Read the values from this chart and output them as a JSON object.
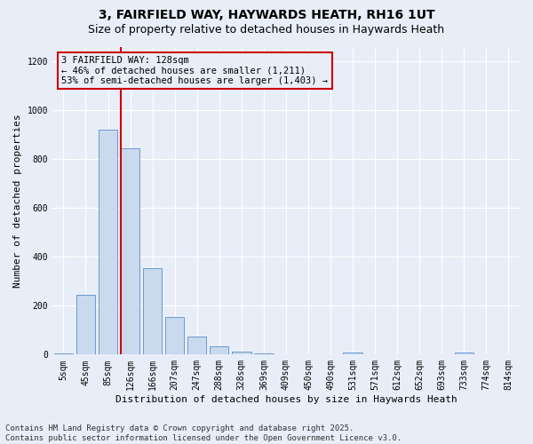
{
  "title": "3, FAIRFIELD WAY, HAYWARDS HEATH, RH16 1UT",
  "subtitle": "Size of property relative to detached houses in Haywards Heath",
  "xlabel": "Distribution of detached houses by size in Haywards Heath",
  "ylabel": "Number of detached properties",
  "bar_labels": [
    "5sqm",
    "45sqm",
    "85sqm",
    "126sqm",
    "166sqm",
    "207sqm",
    "247sqm",
    "288sqm",
    "328sqm",
    "369sqm",
    "409sqm",
    "450sqm",
    "490sqm",
    "531sqm",
    "571sqm",
    "612sqm",
    "652sqm",
    "693sqm",
    "733sqm",
    "774sqm",
    "814sqm"
  ],
  "bar_values": [
    5,
    245,
    920,
    845,
    355,
    155,
    75,
    33,
    12,
    5,
    1,
    0,
    0,
    10,
    0,
    0,
    0,
    0,
    8,
    0,
    0
  ],
  "bar_color": "#c9d9ee",
  "bar_edge_color": "#5b8cc8",
  "ylim": [
    0,
    1260
  ],
  "vline_bar_index": 3,
  "vline_color": "#cc0000",
  "annotation_line1": "3 FAIRFIELD WAY: 128sqm",
  "annotation_line2": "← 46% of detached houses are smaller (1,211)",
  "annotation_line3": "53% of semi-detached houses are larger (1,403) →",
  "annotation_box_color": "#cc0000",
  "footer_line1": "Contains HM Land Registry data © Crown copyright and database right 2025.",
  "footer_line2": "Contains public sector information licensed under the Open Government Licence v3.0.",
  "background_color": "#e8eef8",
  "grid_color": "#ffffff",
  "title_fontsize": 10,
  "subtitle_fontsize": 9,
  "xlabel_fontsize": 8,
  "ylabel_fontsize": 8,
  "tick_fontsize": 7,
  "footer_fontsize": 6.5,
  "annotation_fontsize": 7.5
}
